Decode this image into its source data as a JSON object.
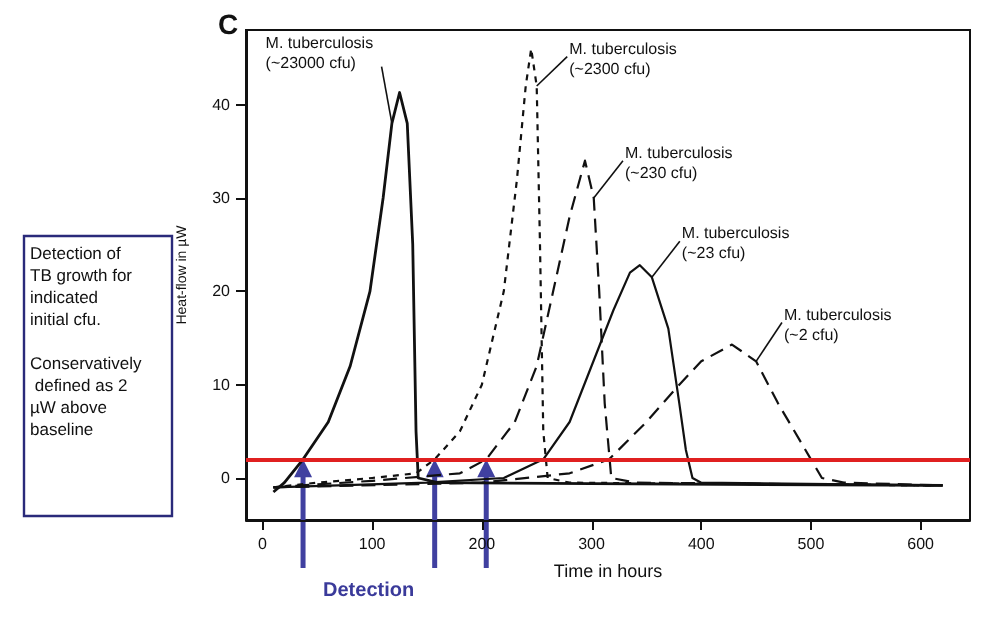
{
  "chart_data": {
    "type": "line",
    "title": "C",
    "xlabel": "Time in hours",
    "ylabel": "Heat-flow in µW",
    "xlim": [
      -15,
      645
    ],
    "ylim": [
      -4.5,
      48
    ],
    "xticks": [
      0,
      100,
      200,
      300,
      400,
      500,
      600
    ],
    "yticks": [
      0,
      10,
      20,
      30,
      40
    ],
    "grid": false,
    "legend": false,
    "marker": "none",
    "series": [
      {
        "name": "M. tuberculosis (~23000 cfu)",
        "color": "#111111",
        "line_style": "solid",
        "x": [
          10,
          20,
          37,
          60,
          80,
          98,
          110,
          118,
          125,
          132,
          137,
          140,
          142,
          160,
          300,
          620
        ],
        "values": [
          -1.5,
          -0.5,
          2,
          6,
          12,
          20,
          30,
          38,
          41.3,
          38,
          25,
          5,
          0,
          -0.5,
          -0.6,
          -0.8
        ]
      },
      {
        "name": "M. tuberculosis (~2300 cfu)",
        "color": "#111111",
        "line_style": "dotted",
        "x": [
          10,
          50,
          100,
          140,
          157,
          180,
          200,
          220,
          232,
          240,
          245,
          250,
          253,
          256,
          260,
          280,
          620
        ],
        "values": [
          -1,
          -0.5,
          0,
          0.5,
          2,
          5,
          10,
          20,
          32,
          42,
          46,
          42,
          25,
          5,
          0,
          -0.5,
          -0.8
        ]
      },
      {
        "name": "M. tuberculosis (~230 cfu)",
        "color": "#111111",
        "line_style": "dashed",
        "x": [
          10,
          100,
          180,
          204,
          230,
          250,
          265,
          280,
          294,
          302,
          307,
          312,
          318,
          340,
          620
        ],
        "values": [
          -1,
          -0.3,
          0.5,
          2,
          6,
          12,
          20,
          28,
          34,
          30,
          20,
          8,
          0,
          -0.5,
          -0.8
        ]
      },
      {
        "name": "M. tuberculosis (~23 cfu)",
        "color": "#111111",
        "line_style": "solid",
        "x": [
          10,
          150,
          220,
          256,
          280,
          300,
          320,
          335,
          344,
          355,
          370,
          380,
          386,
          392,
          400,
          620
        ],
        "values": [
          -1,
          -0.5,
          0,
          2,
          6,
          12,
          18,
          22,
          22.8,
          21.5,
          16,
          8,
          3,
          0,
          -0.5,
          -0.8
        ]
      },
      {
        "name": "M. tuberculosis (~2 cfu)",
        "color": "#111111",
        "line_style": "dashed",
        "x": [
          10,
          200,
          280,
          316,
          350,
          380,
          400,
          428,
          450,
          470,
          490,
          500,
          510,
          530,
          620
        ],
        "values": [
          -1,
          -0.5,
          0.5,
          2,
          6,
          10,
          12.5,
          14.3,
          12.5,
          8,
          4,
          2,
          0,
          -0.5,
          -0.8
        ]
      }
    ],
    "ref_lines": [
      {
        "axis": "y",
        "value": 2,
        "color": "#e02020"
      }
    ],
    "annotations": [
      "Detection of TB growth for indicated initial cfu.\n\nConservatively defined as 2 µW above baseline",
      {
        "text": "Detection",
        "x": 37,
        "y": 2
      }
    ]
  }
}
